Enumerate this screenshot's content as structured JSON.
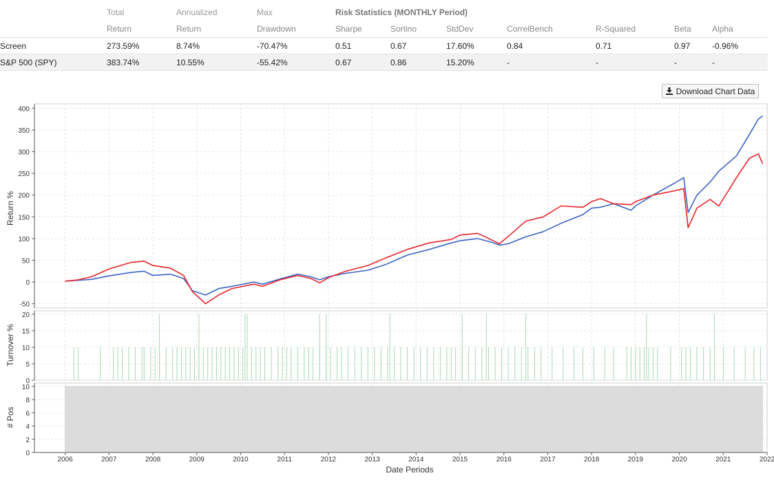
{
  "table": {
    "header1": [
      "Total",
      "Annualized",
      "Max",
      "Risk Statistics (MONTHLY Period)"
    ],
    "header2": [
      "Return",
      "Return",
      "Drawdown",
      "Sharpe",
      "Sortino",
      "StdDev",
      "CorrelBench",
      "R-Squared",
      "Beta",
      "Alpha"
    ],
    "rows": [
      {
        "name": "Screen",
        "cells": [
          "273.59%",
          "8.74%",
          "-70.47%",
          "0.51",
          "0.67",
          "17.60%",
          "0.84",
          "0.71",
          "0.97",
          "-0.96%"
        ]
      },
      {
        "name": "S&P 500 (SPY)",
        "cells": [
          "383.74%",
          "10.55%",
          "-55.42%",
          "0.67",
          "0.86",
          "15.20%",
          "-",
          "-",
          "-",
          "-"
        ]
      }
    ]
  },
  "download_label": "Download Chart Data",
  "icons": {
    "download": "download-icon"
  },
  "colors": {
    "screen": "#e8232a",
    "spy": "#3a62c4",
    "turnover": "#a8d8b4",
    "positions": "#dcdcdc",
    "negative": "#c0392b"
  },
  "chart_data": {
    "type": "line",
    "xlabel": "Date Periods",
    "x_ticks": [
      "2006",
      "2007",
      "2008",
      "2009",
      "2010",
      "2011",
      "2012",
      "2013",
      "2014",
      "2015",
      "2016",
      "2017",
      "2018",
      "2019",
      "2020",
      "2021",
      "2022"
    ],
    "xlim": [
      2005.3,
      2022.0
    ],
    "panels": [
      {
        "name": "returns",
        "ylabel": "Return %",
        "ylim": [
          -60,
          410
        ],
        "yticks": [
          -50,
          0,
          50,
          100,
          150,
          200,
          250,
          300,
          350,
          400
        ],
        "grid": true,
        "series": [
          {
            "key": "spy",
            "color": "#3a62c4",
            "x": [
              2006.0,
              2006.3,
              2006.6,
              2007.0,
              2007.5,
              2007.8,
              2008.0,
              2008.4,
              2008.7,
              2008.9,
              2009.2,
              2009.5,
              2009.8,
              2010.3,
              2010.5,
              2010.9,
              2011.3,
              2011.6,
              2011.8,
              2012.0,
              2012.4,
              2012.9,
              2013.3,
              2013.8,
              2014.3,
              2014.8,
              2015.0,
              2015.4,
              2015.7,
              2015.9,
              2016.1,
              2016.5,
              2016.9,
              2017.3,
              2017.8,
              2018.0,
              2018.2,
              2018.5,
              2018.9,
              2019.0,
              2019.4,
              2019.9,
              2020.1,
              2020.2,
              2020.4,
              2020.7,
              2020.9,
              2021.3,
              2021.6,
              2021.8,
              2021.9
            ],
            "y": [
              2,
              4,
              6,
              14,
              22,
              25,
              15,
              18,
              8,
              -20,
              -30,
              -15,
              -10,
              0,
              -5,
              7,
              18,
              12,
              5,
              12,
              20,
              27,
              40,
              62,
              75,
              90,
              95,
              100,
              92,
              85,
              88,
              104,
              116,
              135,
              155,
              170,
              172,
              180,
              165,
              175,
              200,
              228,
              240,
              160,
              200,
              230,
              255,
              290,
              340,
              375,
              382
            ]
          },
          {
            "key": "screen",
            "color": "#e8232a",
            "x": [
              2006.0,
              2006.3,
              2006.6,
              2007.0,
              2007.5,
              2007.8,
              2008.0,
              2008.4,
              2008.7,
              2008.9,
              2009.2,
              2009.5,
              2009.8,
              2010.3,
              2010.5,
              2010.9,
              2011.3,
              2011.6,
              2011.8,
              2012.0,
              2012.4,
              2012.9,
              2013.3,
              2013.8,
              2014.3,
              2014.8,
              2015.0,
              2015.4,
              2015.7,
              2015.9,
              2016.1,
              2016.5,
              2016.9,
              2017.3,
              2017.8,
              2018.0,
              2018.2,
              2018.5,
              2018.9,
              2019.0,
              2019.4,
              2019.9,
              2020.1,
              2020.2,
              2020.4,
              2020.7,
              2020.9,
              2021.3,
              2021.6,
              2021.8,
              2021.9
            ],
            "y": [
              2,
              5,
              12,
              30,
              45,
              48,
              38,
              32,
              15,
              -22,
              -50,
              -30,
              -15,
              -5,
              -10,
              5,
              15,
              8,
              -2,
              10,
              25,
              38,
              55,
              75,
              90,
              98,
              108,
              112,
              98,
              88,
              105,
              140,
              150,
              175,
              172,
              185,
              192,
              180,
              178,
              185,
              200,
              210,
              215,
              125,
              170,
              190,
              175,
              240,
              285,
              295,
              272
            ]
          }
        ]
      },
      {
        "name": "turnover",
        "ylabel": "Turnover %",
        "ylim": [
          0,
          21
        ],
        "yticks": [
          0,
          5,
          10,
          15,
          20
        ],
        "bars_at_10": [
          2006.2,
          2006.3,
          2006.8,
          2007.1,
          2007.2,
          2007.3,
          2007.45,
          2007.6,
          2007.75,
          2007.8,
          2007.95,
          2008.05,
          2008.15,
          2008.3,
          2008.45,
          2008.55,
          2008.65,
          2008.75,
          2008.85,
          2008.95,
          2009.05,
          2009.15,
          2009.25,
          2009.35,
          2009.45,
          2009.55,
          2009.65,
          2009.75,
          2009.85,
          2009.95,
          2010.05,
          2010.15,
          2010.25,
          2010.35,
          2010.45,
          2010.55,
          2010.7,
          2010.85,
          2010.95,
          2011.05,
          2011.15,
          2011.3,
          2011.45,
          2011.55,
          2011.65,
          2011.8,
          2011.95,
          2012.05,
          2012.2,
          2012.3,
          2012.45,
          2012.6,
          2012.75,
          2012.9,
          2013.05,
          2013.2,
          2013.35,
          2013.5,
          2013.65,
          2013.8,
          2013.95,
          2014.1,
          2014.25,
          2014.4,
          2014.55,
          2014.7,
          2014.8,
          2014.9,
          2015.05,
          2015.2,
          2015.35,
          2015.5,
          2015.65,
          2015.8,
          2015.95,
          2016.1,
          2016.25,
          2016.4,
          2016.55,
          2016.7,
          2016.85,
          2017.1,
          2017.35,
          2017.6,
          2017.8,
          2018.05,
          2018.3,
          2018.5,
          2018.8,
          2018.9,
          2019.0,
          2019.1,
          2019.2,
          2019.3,
          2019.4,
          2019.5,
          2019.8,
          2020.05,
          2020.15,
          2020.25,
          2020.4,
          2020.55,
          2020.7,
          2020.8,
          2021.0,
          2021.25,
          2021.5,
          2021.7,
          2021.85
        ],
        "bars_at_20": [
          2008.15,
          2009.05,
          2010.1,
          2010.15,
          2011.8,
          2011.95,
          2013.4,
          2015.05,
          2015.6,
          2016.5,
          2019.25,
          2020.8
        ]
      },
      {
        "name": "positions",
        "ylabel": "# Pos",
        "ylim": [
          0,
          10.5
        ],
        "yticks": [
          0,
          2,
          4,
          6,
          8,
          10
        ],
        "area": {
          "x": [
            2006.0,
            2021.9
          ],
          "y": 10
        }
      }
    ]
  }
}
